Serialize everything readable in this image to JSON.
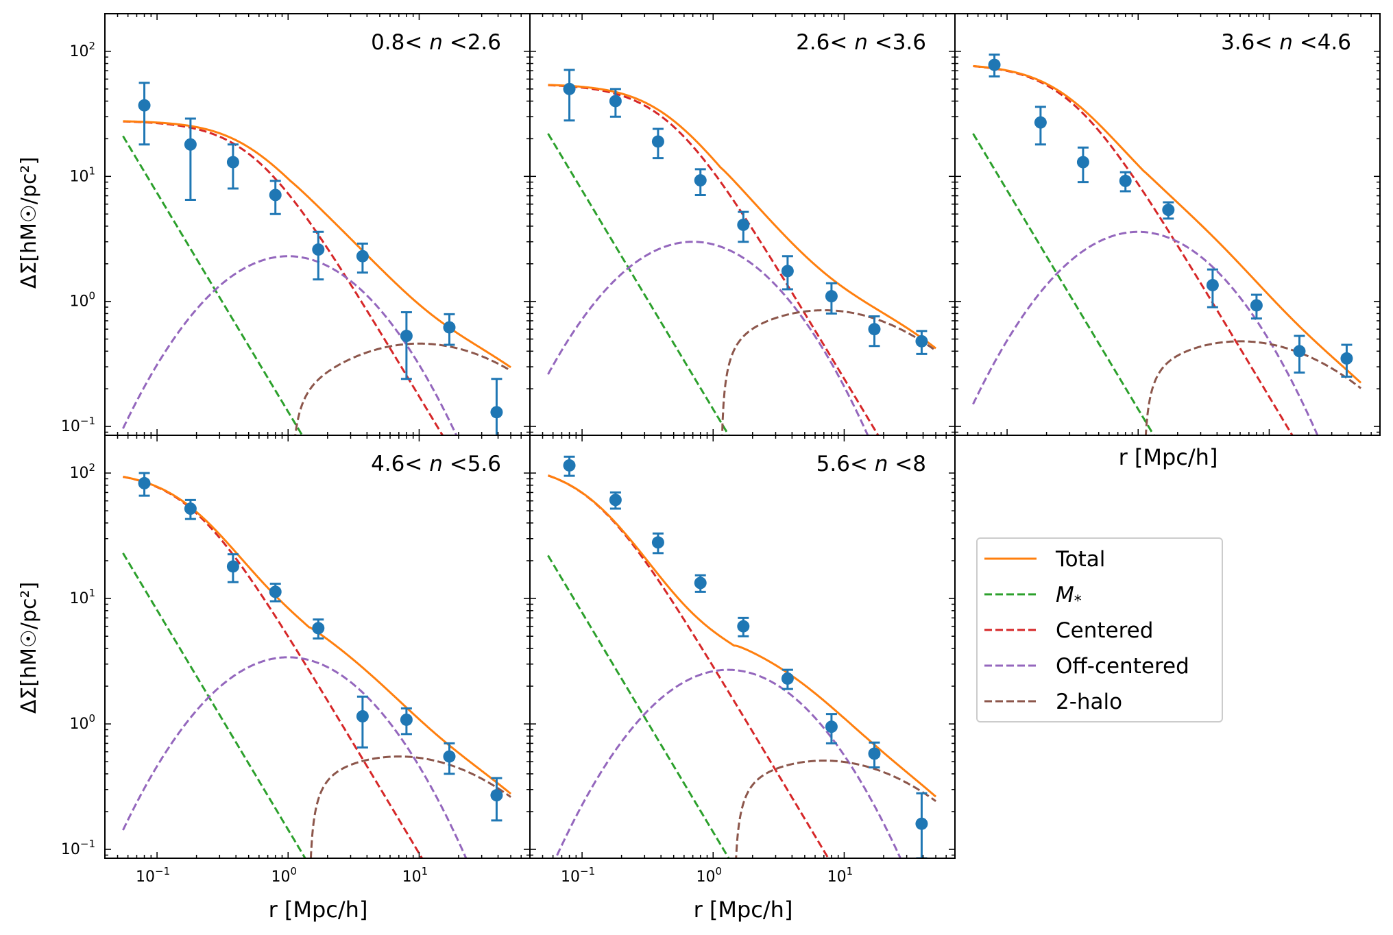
{
  "figure": {
    "ylabel": "ΔΣ[hM☉/pc²]",
    "xlabel": "r [Mpc/h]",
    "colors": {
      "Total": "#ff7f0e",
      "M*": "#2ca02c",
      "Centered": "#d62728",
      "Off-centered": "#9467bd",
      "2-halo": "#8c564b",
      "data": "#1f77b4"
    },
    "legend": [
      {
        "key": "Total",
        "label": "Total",
        "style": "solid"
      },
      {
        "key": "M*",
        "label": "M*",
        "style": "dashed"
      },
      {
        "key": "Centered",
        "label": "Centered",
        "style": "dashed"
      },
      {
        "key": "Off-centered",
        "label": "Off-centered",
        "style": "dashed"
      },
      {
        "key": "2-halo",
        "label": "2-halo",
        "style": "dashed"
      }
    ]
  },
  "chart_data": [
    {
      "type": "line+errorbar",
      "title": "0.8< n <2.6",
      "xscale": "log",
      "yscale": "log",
      "xlim": [
        0.04,
        70
      ],
      "ylim": [
        0.085,
        200
      ],
      "x": [
        0.08,
        0.18,
        0.38,
        0.8,
        1.7,
        3.7,
        8.0,
        17,
        39
      ],
      "y": [
        37,
        18,
        13,
        7.1,
        2.6,
        2.3,
        0.53,
        0.62,
        0.13
      ],
      "yerr_low": [
        19,
        11.5,
        5,
        2.1,
        1.1,
        0.6,
        0.29,
        0.17,
        0.085
      ],
      "yerr_high": [
        19,
        11,
        5,
        2.1,
        1.0,
        0.6,
        0.29,
        0.17,
        0.11
      ],
      "models": {
        "mstar_A": 21,
        "cent_A": 28,
        "cent_rs": 0.55,
        "off_peak_x": 1.0,
        "off_peak_y": 2.3,
        "two_start": 1.05,
        "two_peak_x": 10,
        "two_peak_y": 0.46
      }
    },
    {
      "type": "line+errorbar",
      "title": "2.6< n <3.6",
      "xscale": "log",
      "yscale": "log",
      "xlim": [
        0.04,
        70
      ],
      "ylim": [
        0.085,
        200
      ],
      "x": [
        0.08,
        0.18,
        0.38,
        0.8,
        1.7,
        3.7,
        8.0,
        17,
        39
      ],
      "y": [
        50,
        40,
        19,
        9.3,
        4.1,
        1.75,
        1.1,
        0.6,
        0.48
      ],
      "yerr_low": [
        22,
        10,
        5,
        2.2,
        1.1,
        0.5,
        0.3,
        0.16,
        0.1
      ],
      "yerr_high": [
        21,
        10,
        5,
        2.1,
        1.1,
        0.55,
        0.3,
        0.16,
        0.1
      ],
      "models": {
        "mstar_A": 22,
        "cent_A": 55,
        "cent_rs": 0.45,
        "off_peak_x": 0.7,
        "off_peak_y": 3.0,
        "two_start": 1.15,
        "two_peak_x": 7,
        "two_peak_y": 0.85
      }
    },
    {
      "type": "line+errorbar",
      "title": "3.6< n <4.6",
      "xscale": "log",
      "yscale": "log",
      "xlim": [
        0.04,
        70
      ],
      "ylim": [
        0.085,
        200
      ],
      "x": [
        0.08,
        0.18,
        0.38,
        0.8,
        1.7,
        3.7,
        8.0,
        17,
        39
      ],
      "y": [
        78,
        27,
        13,
        9.2,
        5.4,
        1.35,
        0.93,
        0.4,
        0.35
      ],
      "yerr_low": [
        15,
        9,
        4,
        1.6,
        0.8,
        0.45,
        0.2,
        0.13,
        0.1
      ],
      "yerr_high": [
        16,
        9,
        4,
        1.6,
        0.8,
        0.45,
        0.2,
        0.13,
        0.1
      ],
      "models": {
        "mstar_A": 22,
        "cent_A": 80,
        "cent_rs": 0.3,
        "off_peak_x": 1.0,
        "off_peak_y": 3.6,
        "two_start": 1.1,
        "two_peak_x": 6,
        "two_peak_y": 0.48
      }
    },
    {
      "type": "line+errorbar",
      "title": "4.6< n <5.6",
      "xscale": "log",
      "yscale": "log",
      "xlim": [
        0.04,
        70
      ],
      "ylim": [
        0.085,
        200
      ],
      "x": [
        0.08,
        0.18,
        0.38,
        0.8,
        1.7,
        3.7,
        8.0,
        17,
        39
      ],
      "y": [
        83,
        52,
        18,
        11.3,
        5.8,
        1.15,
        1.08,
        0.55,
        0.27
      ],
      "yerr_low": [
        17,
        9,
        4.5,
        1.8,
        1.0,
        0.5,
        0.25,
        0.15,
        0.1
      ],
      "yerr_high": [
        17,
        9,
        4.5,
        1.8,
        1.0,
        0.5,
        0.25,
        0.15,
        0.1
      ],
      "models": {
        "mstar_A": 23,
        "cent_A": 105,
        "cent_rs": 0.18,
        "off_peak_x": 1.0,
        "off_peak_y": 3.4,
        "two_start": 1.45,
        "two_peak_x": 7,
        "two_peak_y": 0.55
      }
    },
    {
      "type": "line+errorbar",
      "title": "5.6< n <8",
      "xscale": "log",
      "yscale": "log",
      "xlim": [
        0.04,
        70
      ],
      "ylim": [
        0.085,
        200
      ],
      "x": [
        0.08,
        0.18,
        0.38,
        0.8,
        1.7,
        3.7,
        8.0,
        17,
        39
      ],
      "y": [
        115,
        61,
        28,
        13.3,
        6.0,
        2.3,
        0.95,
        0.58,
        0.16
      ],
      "yerr_low": [
        20,
        9,
        5,
        2,
        1.0,
        0.4,
        0.25,
        0.13,
        0.075
      ],
      "yerr_high": [
        20,
        9,
        5,
        2,
        1.0,
        0.4,
        0.25,
        0.13,
        0.12
      ],
      "models": {
        "mstar_A": 22,
        "cent_A": 120,
        "cent_rs": 0.12,
        "off_peak_x": 1.3,
        "off_peak_y": 2.7,
        "two_start": 1.45,
        "two_peak_x": 7,
        "two_peak_y": 0.51
      }
    }
  ]
}
